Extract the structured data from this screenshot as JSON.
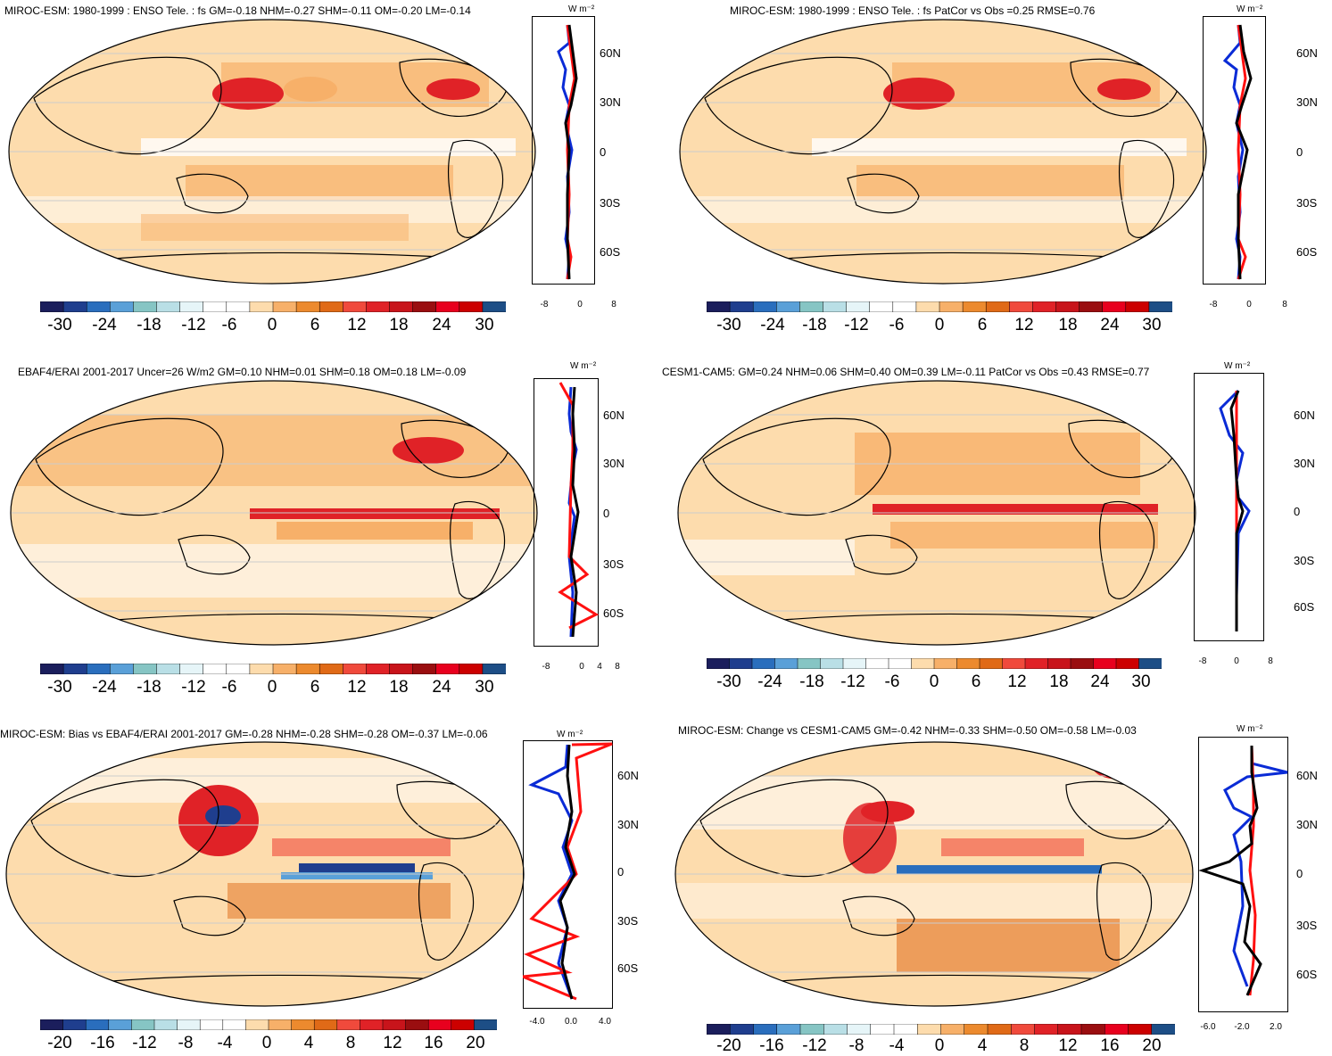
{
  "panels": [
    {
      "title": "MIROC-ESM: 1980-1999 : ENSO Tele. : fs GM=-0.18 NHM=-0.27 SHM=-0.11 OM=-0.20 LM=-0.14",
      "colorbar_ticks": [
        "-30",
        "-24",
        "-18",
        "-12",
        "-6",
        "0",
        "6",
        "12",
        "18",
        "24",
        "30"
      ],
      "profile_xticks": [
        "-8",
        "0",
        "8"
      ],
      "lat_ticks": [
        "60N",
        "30N",
        "0",
        "30S",
        "60S"
      ],
      "units": "W m⁻²"
    },
    {
      "title": "MIROC-ESM: 1980-1999 : ENSO Tele. : fs PatCor vs Obs =0.25 RMSE=0.76",
      "colorbar_ticks": [
        "-30",
        "-24",
        "-18",
        "-12",
        "-6",
        "0",
        "6",
        "12",
        "18",
        "24",
        "30"
      ],
      "profile_xticks": [
        "-8",
        "0",
        "8"
      ],
      "lat_ticks": [
        "60N",
        "30N",
        "0",
        "30S",
        "60S"
      ],
      "units": "W m⁻²"
    },
    {
      "title": "EBAF4/ERAI 2001-2017 Uncer=26 W/m2 GM=0.10 NHM=0.01 SHM=0.18 OM=0.18 LM=-0.09",
      "colorbar_ticks": [
        "-30",
        "-24",
        "-18",
        "-12",
        "-6",
        "0",
        "6",
        "12",
        "18",
        "24",
        "30"
      ],
      "profile_xticks": [
        "-8",
        "0",
        "4",
        "8"
      ],
      "lat_ticks": [
        "60N",
        "30N",
        "0",
        "30S",
        "60S"
      ],
      "units": "W m⁻²"
    },
    {
      "title": "CESM1-CAM5: GM=0.24 NHM=0.06 SHM=0.40 OM=0.39 LM=-0.11 PatCor vs Obs =0.43 RMSE=0.77",
      "colorbar_ticks": [
        "-30",
        "-24",
        "-18",
        "-12",
        "-6",
        "0",
        "6",
        "12",
        "18",
        "24",
        "30"
      ],
      "profile_xticks": [
        "-8",
        "0",
        "8"
      ],
      "lat_ticks": [
        "60N",
        "30N",
        "0",
        "30S",
        "60S"
      ],
      "units": "W m⁻²"
    },
    {
      "title": "MIROC-ESM: Bias vs EBAF4/ERAI 2001-2017 GM=-0.28 NHM=-0.28 SHM=-0.28 OM=-0.37 LM=-0.06",
      "colorbar_ticks": [
        "-20",
        "-16",
        "-12",
        "-8",
        "-4",
        "0",
        "4",
        "8",
        "12",
        "16",
        "20"
      ],
      "profile_xticks": [
        "-4.0",
        "0.0",
        "4.0"
      ],
      "lat_ticks": [
        "60N",
        "30N",
        "0",
        "30S",
        "60S"
      ],
      "units": "W m⁻²"
    },
    {
      "title": "MIROC-ESM: Change vs CESM1-CAM5 GM=-0.42 NHM=-0.33 SHM=-0.50 OM=-0.58 LM=-0.03",
      "colorbar_ticks": [
        "-20",
        "-16",
        "-12",
        "-8",
        "-4",
        "0",
        "4",
        "8",
        "12",
        "16",
        "20"
      ],
      "profile_xticks": [
        "-6.0",
        "-2.0",
        "2.0"
      ],
      "lat_ticks": [
        "60N",
        "30N",
        "0",
        "30S",
        "60S"
      ],
      "units": "W m⁻²"
    }
  ],
  "colors": {
    "palette": [
      "#1b1e5c",
      "#1f3e8e",
      "#2a6ebd",
      "#5aa0d8",
      "#86c5c4",
      "#b9dfe6",
      "#e6f5f8",
      "#ffffff",
      "#ffffff",
      "#fddcad",
      "#f7b069",
      "#ec8a2e",
      "#e06a17",
      "#f04a3c",
      "#e02227",
      "#c8141b",
      "#9a0e10",
      "#e8001e",
      "#cc0000",
      "#1d4e86"
    ],
    "land_line": "#000000",
    "grid": "#cccccc",
    "profile_black": "#000000",
    "profile_blue": "#0a2bd6",
    "profile_red": "#ff1010"
  }
}
